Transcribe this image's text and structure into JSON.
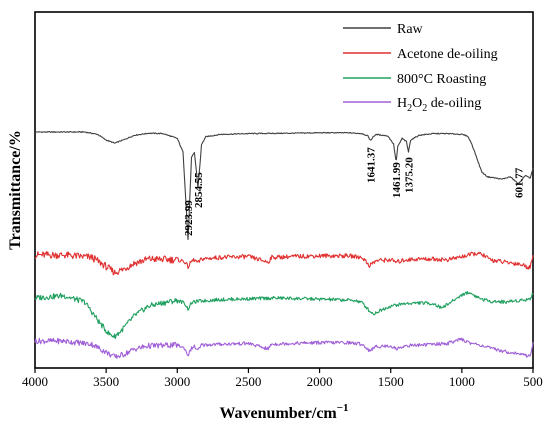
{
  "chart_data": {
    "type": "line",
    "xlabel": "Wavenumber/cm",
    "xlabel_sup": "−1",
    "ylabel": "Transmittance/%",
    "xlim": [
      4000,
      500
    ],
    "x_reversed": true,
    "x_ticks": [
      4000,
      3500,
      3000,
      2500,
      2000,
      1500,
      1000,
      500
    ],
    "y_ticks_shown": false,
    "grid": false,
    "legend_position": "top-right",
    "series": [
      {
        "name": "Raw",
        "color": "#404040",
        "x": [
          4000,
          3800,
          3650,
          3560,
          3500,
          3440,
          3380,
          3300,
          3200,
          3100,
          3000,
          2960,
          2935,
          2924,
          2915,
          2900,
          2880,
          2865,
          2855,
          2845,
          2830,
          2800,
          2700,
          2500,
          2200,
          2000,
          1800,
          1700,
          1660,
          1641,
          1625,
          1600,
          1520,
          1480,
          1462,
          1450,
          1420,
          1390,
          1375,
          1360,
          1300,
          1200,
          1100,
          1000,
          960,
          930,
          900,
          860,
          820,
          780,
          720,
          660,
          620,
          602,
          580,
          550,
          520,
          500
        ],
        "y": [
          0,
          0,
          0,
          -0.3,
          -1.0,
          -1.4,
          -1.0,
          -0.4,
          -0.15,
          -0.2,
          -0.8,
          -2.5,
          -10,
          -13.8,
          -9.5,
          -3.2,
          -2.6,
          -5,
          -7,
          -5,
          -1.6,
          -0.6,
          -0.3,
          -0.2,
          -0.15,
          -0.1,
          -0.1,
          -0.2,
          -0.5,
          -1.1,
          -0.6,
          -0.3,
          -0.5,
          -1.5,
          -3.8,
          -1.8,
          -0.8,
          -1.2,
          -2.5,
          -1.0,
          -0.4,
          -0.2,
          -0.2,
          -0.3,
          -0.5,
          -1.5,
          -3.0,
          -5.0,
          -5.6,
          -5.7,
          -5.9,
          -5.6,
          -6.2,
          -6.5,
          -6.0,
          -5.4,
          -5.8,
          -4.6
        ]
      },
      {
        "name": "Acetone de-oiling",
        "color": "#e03030",
        "x": [
          4000,
          3800,
          3600,
          3520,
          3440,
          3380,
          3300,
          3200,
          3000,
          2950,
          2924,
          2900,
          2880,
          2855,
          2830,
          2700,
          2500,
          2360,
          2340,
          2200,
          2000,
          1800,
          1700,
          1650,
          1600,
          1500,
          1460,
          1400,
          1300,
          1200,
          1100,
          1050,
          1000,
          950,
          900,
          850,
          800,
          700,
          600,
          550,
          520,
          500
        ],
        "y": [
          0,
          0,
          -0.3,
          -1.2,
          -2.2,
          -1.8,
          -1.0,
          -0.5,
          -0.6,
          -0.8,
          -1.5,
          -0.8,
          -0.6,
          -1.0,
          -0.5,
          -0.3,
          -0.2,
          -0.9,
          -0.3,
          -0.2,
          -0.1,
          -0.1,
          -0.3,
          -1.3,
          -0.7,
          -0.6,
          -0.9,
          -0.6,
          -0.5,
          -0.5,
          -0.6,
          -0.4,
          -0.2,
          0.0,
          0.2,
          0.0,
          -0.6,
          -0.9,
          -1.1,
          -1.4,
          -1.6,
          0.2
        ]
      },
      {
        "name": "800°C Roasting",
        "color": "#20a060",
        "x": [
          4000,
          3800,
          3650,
          3550,
          3480,
          3440,
          3400,
          3300,
          3200,
          3100,
          3000,
          2950,
          2924,
          2900,
          2855,
          2700,
          2500,
          2300,
          2100,
          1900,
          1750,
          1700,
          1650,
          1620,
          1580,
          1500,
          1400,
          1300,
          1200,
          1150,
          1100,
          1050,
          1000,
          950,
          900,
          850,
          800,
          700,
          600,
          550,
          520,
          500
        ],
        "y": [
          0,
          0.3,
          -0.5,
          -3.0,
          -4.5,
          -4.8,
          -4.2,
          -2.2,
          -1.0,
          -0.6,
          -0.3,
          -0.6,
          -1.4,
          -0.6,
          -0.4,
          -0.2,
          -0.1,
          0.0,
          -0.1,
          -0.2,
          -0.3,
          -0.6,
          -1.6,
          -2.0,
          -1.6,
          -1.0,
          -0.7,
          -0.6,
          -0.7,
          -1.2,
          -0.8,
          -0.2,
          0.4,
          0.7,
          0.2,
          -0.2,
          -0.4,
          -0.5,
          -0.3,
          -0.2,
          -0.1,
          0.6
        ]
      },
      {
        "name": "H2O2 de-oiling",
        "color": "#a060d8",
        "x": [
          4000,
          3800,
          3600,
          3520,
          3440,
          3380,
          3300,
          3200,
          3000,
          2950,
          2924,
          2900,
          2880,
          2855,
          2830,
          2700,
          2500,
          2360,
          2340,
          2200,
          2000,
          1800,
          1700,
          1650,
          1600,
          1500,
          1460,
          1400,
          1300,
          1200,
          1100,
          1050,
          1000,
          950,
          900,
          850,
          800,
          700,
          600,
          550,
          520,
          500
        ],
        "y": [
          0,
          0,
          -0.4,
          -1.2,
          -2.0,
          -1.7,
          -1.0,
          -0.6,
          -0.5,
          -0.9,
          -1.8,
          -0.9,
          -0.7,
          -1.2,
          -0.5,
          -0.4,
          -0.3,
          -1.0,
          -0.4,
          -0.3,
          -0.2,
          -0.2,
          -0.4,
          -1.2,
          -0.7,
          -0.6,
          -1.0,
          -0.6,
          -0.5,
          -0.4,
          -0.3,
          0.0,
          0.2,
          -0.2,
          -0.4,
          -0.6,
          -0.9,
          -1.3,
          -1.6,
          -1.8,
          -1.9,
          -0.2
        ]
      }
    ],
    "annotations": [
      {
        "text": "2923.99",
        "x": 2924
      },
      {
        "text": "2854.55",
        "x": 2855
      },
      {
        "text": "1641.37",
        "x": 1641
      },
      {
        "text": "1461.99",
        "x": 1462
      },
      {
        "text": "1375.20",
        "x": 1375
      },
      {
        "text": "601.77",
        "x": 602
      }
    ],
    "legend": [
      {
        "label": "Raw"
      },
      {
        "label": "Acetone de-oiling"
      },
      {
        "label": "800°C Roasting"
      },
      {
        "label": "H",
        "sub": "2",
        "mid": "O",
        "sub2": "2",
        "tail": " de-oiling"
      }
    ]
  }
}
